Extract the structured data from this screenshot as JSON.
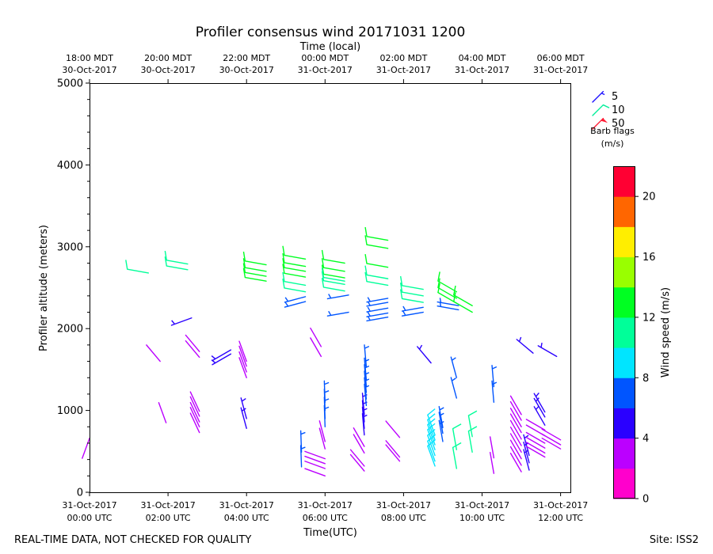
{
  "chart_data": {
    "type": "wind-barb-profile",
    "title": "Profiler consensus wind 20171031 1200",
    "xlabel_bottom": "Time(UTC)",
    "xlabel_top": "Time (local)",
    "ylabel": "Profiler altitude (meters)",
    "ylim": [
      0,
      5000
    ],
    "yticks": [
      "0",
      "1000",
      "2000",
      "3000",
      "4000",
      "5000"
    ],
    "xlim_hours_utc": [
      0,
      12.25
    ],
    "bottom_ticks": [
      {
        "h": 0,
        "l1": "31-Oct-2017",
        "l2": "00:00 UTC"
      },
      {
        "h": 2,
        "l1": "31-Oct-2017",
        "l2": "02:00 UTC"
      },
      {
        "h": 4,
        "l1": "31-Oct-2017",
        "l2": "04:00 UTC"
      },
      {
        "h": 6,
        "l1": "31-Oct-2017",
        "l2": "06:00 UTC"
      },
      {
        "h": 8,
        "l1": "31-Oct-2017",
        "l2": "08:00 UTC"
      },
      {
        "h": 10,
        "l1": "31-Oct-2017",
        "l2": "10:00 UTC"
      },
      {
        "h": 12,
        "l1": "31-Oct-2017",
        "l2": "12:00 UTC"
      }
    ],
    "top_ticks": [
      {
        "h": 0,
        "l1": "18:00 MDT",
        "l2": "30-Oct-2017"
      },
      {
        "h": 2,
        "l1": "20:00 MDT",
        "l2": "30-Oct-2017"
      },
      {
        "h": 4,
        "l1": "22:00 MDT",
        "l2": "30-Oct-2017"
      },
      {
        "h": 6,
        "l1": "00:00 MDT",
        "l2": "31-Oct-2017"
      },
      {
        "h": 8,
        "l1": "02:00 MDT",
        "l2": "31-Oct-2017"
      },
      {
        "h": 10,
        "l1": "04:00 MDT",
        "l2": "31-Oct-2017"
      },
      {
        "h": 12,
        "l1": "06:00 MDT",
        "l2": "31-Oct-2017"
      }
    ],
    "barb_legend": {
      "entries": [
        {
          "label": "5",
          "color": "#1a0dff"
        },
        {
          "label": "10",
          "color": "#00ee99"
        },
        {
          "label": "50",
          "color": "#ff1a33"
        }
      ],
      "caption": "Barb flags",
      "units": "(m/s)"
    },
    "colorbar": {
      "label": "Wind speed (m/s)",
      "min": 0,
      "max": 22,
      "step": 2,
      "tick_values": [
        0,
        4,
        8,
        12,
        16,
        20
      ],
      "tick_labels": [
        "0",
        "4",
        "8",
        "12",
        "16",
        "20"
      ],
      "colors": [
        "#ff00cc",
        "#bb00ff",
        "#2a00ff",
        "#0055ff",
        "#00e5ff",
        "#00ff99",
        "#00ff22",
        "#99ff00",
        "#ffee00",
        "#ff6600",
        "#ff0033"
      ]
    },
    "barb_groups": [
      {
        "t": 0,
        "s": 3,
        "d": 200,
        "z": [
          660
        ]
      },
      {
        "t": 1.8,
        "s": 3,
        "d": 320,
        "z": [
          1600
        ]
      },
      {
        "t": 1.95,
        "s": 3,
        "d": 340,
        "z": [
          850
        ]
      },
      {
        "t": 1.5,
        "s": 10,
        "d": 280,
        "z": [
          2680
        ]
      },
      {
        "t": 2.5,
        "s": 10,
        "d": 280,
        "z": [
          2720,
          2790
        ]
      },
      {
        "t": 2.6,
        "s": 5,
        "d": 250,
        "z": [
          2130
        ]
      },
      {
        "t": 2.8,
        "s": 3,
        "d": 320,
        "z": [
          1650,
          1720
        ]
      },
      {
        "t": 2.8,
        "s": 3,
        "d": 335,
        "z": [
          730,
          800,
          860,
          930,
          990
        ]
      },
      {
        "t": 3.6,
        "s": 5,
        "d": 240,
        "z": [
          1690,
          1740
        ]
      },
      {
        "t": 4.0,
        "s": 3,
        "d": 340,
        "z": [
          1400,
          1470,
          1540,
          1600
        ]
      },
      {
        "t": 4.0,
        "s": 5,
        "d": 345,
        "z": [
          780,
          900
        ]
      },
      {
        "t": 4.5,
        "s": 12,
        "d": 280,
        "z": [
          2580,
          2640,
          2700,
          2780
        ]
      },
      {
        "t": 5.4,
        "s": 6,
        "d": 358,
        "z": [
          310,
          490
        ]
      },
      {
        "t": 5.5,
        "s": 12,
        "d": 280,
        "z": [
          2630,
          2700,
          2760,
          2850
        ]
      },
      {
        "t": 5.5,
        "s": 10,
        "d": 280,
        "z": [
          2450,
          2530
        ]
      },
      {
        "t": 5.5,
        "s": 6,
        "d": 255,
        "z": [
          2330,
          2390
        ]
      },
      {
        "t": 5.9,
        "s": 3,
        "d": 330,
        "z": [
          1660,
          1780
        ]
      },
      {
        "t": 6.0,
        "s": 6,
        "d": 358,
        "z": [
          800,
          900,
          1000,
          1100
        ]
      },
      {
        "t": 6.0,
        "s": 3,
        "d": 345,
        "z": [
          530,
          620
        ]
      },
      {
        "t": 6.0,
        "s": 2,
        "d": 290,
        "z": [
          200,
          290,
          350,
          410
        ]
      },
      {
        "t": 6.5,
        "s": 12,
        "d": 280,
        "z": [
          2620,
          2700,
          2800
        ]
      },
      {
        "t": 6.5,
        "s": 10,
        "d": 280,
        "z": [
          2460,
          2540,
          2580
        ]
      },
      {
        "t": 6.6,
        "s": 6,
        "d": 260,
        "z": [
          2200,
          2410
        ]
      },
      {
        "t": 7.0,
        "s": 5,
        "d": 355,
        "z": [
          700,
          780,
          860,
          950
        ]
      },
      {
        "t": 7.0,
        "s": 3,
        "d": 330,
        "z": [
          480,
          560
        ]
      },
      {
        "t": 7.0,
        "s": 2,
        "d": 320,
        "z": [
          260,
          320
        ]
      },
      {
        "t": 7.05,
        "s": 6,
        "d": 355,
        "z": [
          1060,
          1140,
          1220,
          1300,
          1380,
          1540
        ]
      },
      {
        "t": 7.6,
        "s": 12,
        "d": 280,
        "z": [
          2750,
          2980,
          3080
        ]
      },
      {
        "t": 7.6,
        "s": 10,
        "d": 280,
        "z": [
          2530,
          2610
        ]
      },
      {
        "t": 7.6,
        "s": 6,
        "d": 260,
        "z": [
          2140,
          2190,
          2250,
          2320,
          2370
        ]
      },
      {
        "t": 7.9,
        "s": 3,
        "d": 320,
        "z": [
          380,
          430,
          670
        ]
      },
      {
        "t": 8.5,
        "s": 10,
        "d": 280,
        "z": [
          2320,
          2400,
          2480
        ]
      },
      {
        "t": 8.5,
        "s": 6,
        "d": 260,
        "z": [
          2200,
          2260
        ]
      },
      {
        "t": 8.7,
        "s": 5,
        "d": 320,
        "z": [
          1580
        ]
      },
      {
        "t": 8.8,
        "s": 9,
        "d": 340,
        "z": [
          320,
          380,
          450,
          520,
          580,
          640,
          700
        ]
      },
      {
        "t": 9.0,
        "s": 6,
        "d": 350,
        "z": [
          620,
          720,
          790
        ]
      },
      {
        "t": 9.35,
        "s": 12,
        "d": 300,
        "z": [
          2310,
          2370,
          2450
        ]
      },
      {
        "t": 9.4,
        "s": 6,
        "d": 280,
        "z": [
          2230,
          2280
        ]
      },
      {
        "t": 9.35,
        "s": 7,
        "d": 345,
        "z": [
          1150,
          1400
        ]
      },
      {
        "t": 9.35,
        "s": 10,
        "d": 350,
        "z": [
          290,
          520
        ]
      },
      {
        "t": 9.75,
        "s": 12,
        "d": 300,
        "z": [
          2200,
          2280
        ]
      },
      {
        "t": 9.75,
        "s": 10,
        "d": 350,
        "z": [
          490,
          680
        ]
      },
      {
        "t": 10.3,
        "s": 6,
        "d": 355,
        "z": [
          1100,
          1290
        ]
      },
      {
        "t": 10.3,
        "s": 3,
        "d": 350,
        "z": [
          230,
          420
        ]
      },
      {
        "t": 11.0,
        "s": 3,
        "d": 330,
        "z": [
          250,
          330,
          410,
          490,
          570,
          650,
          730,
          800,
          880,
          950
        ]
      },
      {
        "t": 11.2,
        "s": 5,
        "d": 345,
        "z": [
          270,
          360,
          450
        ]
      },
      {
        "t": 11.6,
        "s": 3,
        "d": 300,
        "z": [
          430,
          480,
          540,
          600,
          690,
          760
        ]
      },
      {
        "t": 11.6,
        "s": 5,
        "d": 330,
        "z": [
          820,
          920,
          980
        ]
      },
      {
        "t": 11.3,
        "s": 5,
        "d": 310,
        "z": [
          1700
        ]
      },
      {
        "t": 12.0,
        "s": 3,
        "d": 300,
        "z": [
          530,
          580,
          640
        ]
      },
      {
        "t": 11.9,
        "s": 5,
        "d": 300,
        "z": [
          1660
        ]
      }
    ]
  },
  "footer": {
    "left": "REAL-TIME DATA, NOT CHECKED FOR QUALITY",
    "right": "Site: ISS2"
  }
}
